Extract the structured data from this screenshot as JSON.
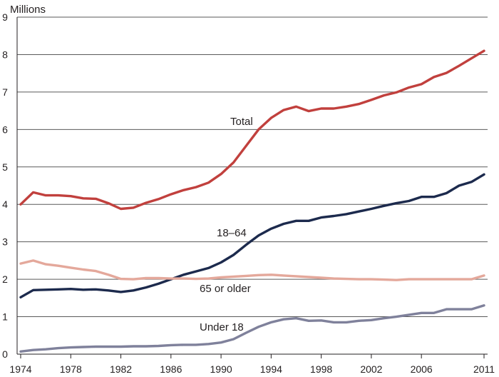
{
  "chart_data": {
    "type": "line",
    "ylabel": "Millions",
    "ylim": [
      0,
      9
    ],
    "yticks": [
      0,
      1,
      2,
      3,
      4,
      5,
      6,
      7,
      8,
      9
    ],
    "xlim": [
      1974,
      2011
    ],
    "xticks": [
      "1974",
      "1978",
      "1982",
      "1986",
      "1990",
      "1994",
      "1998",
      "2002",
      "2006",
      "2011"
    ],
    "grid": "horizontal",
    "x": [
      1974,
      1975,
      1976,
      1977,
      1978,
      1979,
      1980,
      1981,
      1982,
      1983,
      1984,
      1985,
      1986,
      1987,
      1988,
      1989,
      1990,
      1991,
      1992,
      1993,
      1994,
      1995,
      1996,
      1997,
      1998,
      1999,
      2000,
      2001,
      2002,
      2003,
      2004,
      2005,
      2006,
      2007,
      2008,
      2009,
      2010,
      2011
    ],
    "series": [
      {
        "name": "Total",
        "color": "#c1403d",
        "values": [
          4.0,
          4.32,
          4.24,
          4.24,
          4.22,
          4.16,
          4.15,
          4.03,
          3.88,
          3.91,
          4.04,
          4.14,
          4.27,
          4.38,
          4.46,
          4.58,
          4.81,
          5.12,
          5.56,
          6.0,
          6.31,
          6.52,
          6.61,
          6.49,
          6.56,
          6.56,
          6.61,
          6.68,
          6.79,
          6.91,
          6.99,
          7.12,
          7.21,
          7.4,
          7.51,
          7.7,
          7.9,
          8.1
        ]
      },
      {
        "name": "18–64",
        "color": "#1c2a4d",
        "values": [
          1.52,
          1.71,
          1.72,
          1.73,
          1.74,
          1.72,
          1.73,
          1.7,
          1.66,
          1.7,
          1.78,
          1.88,
          2.0,
          2.12,
          2.21,
          2.3,
          2.45,
          2.65,
          2.92,
          3.17,
          3.35,
          3.48,
          3.56,
          3.56,
          3.65,
          3.69,
          3.74,
          3.81,
          3.88,
          3.96,
          4.03,
          4.09,
          4.2,
          4.2,
          4.3,
          4.5,
          4.6,
          4.8
        ]
      },
      {
        "name": "65 or older",
        "color": "#e4a89b",
        "values": [
          2.42,
          2.5,
          2.4,
          2.36,
          2.31,
          2.26,
          2.22,
          2.12,
          2.01,
          2.0,
          2.03,
          2.03,
          2.02,
          2.02,
          2.01,
          2.02,
          2.05,
          2.07,
          2.09,
          2.11,
          2.12,
          2.1,
          2.08,
          2.06,
          2.04,
          2.02,
          2.01,
          2.0,
          2.0,
          1.99,
          1.98,
          2.0,
          2.0,
          2.0,
          2.0,
          2.0,
          2.0,
          2.1
        ]
      },
      {
        "name": "Under 18",
        "color": "#7f819b",
        "values": [
          0.07,
          0.11,
          0.13,
          0.16,
          0.18,
          0.19,
          0.2,
          0.2,
          0.2,
          0.21,
          0.21,
          0.22,
          0.24,
          0.25,
          0.25,
          0.27,
          0.31,
          0.4,
          0.57,
          0.73,
          0.85,
          0.93,
          0.96,
          0.89,
          0.9,
          0.85,
          0.85,
          0.89,
          0.91,
          0.96,
          1.0,
          1.05,
          1.1,
          1.1,
          1.2,
          1.2,
          1.2,
          1.3
        ]
      }
    ]
  }
}
